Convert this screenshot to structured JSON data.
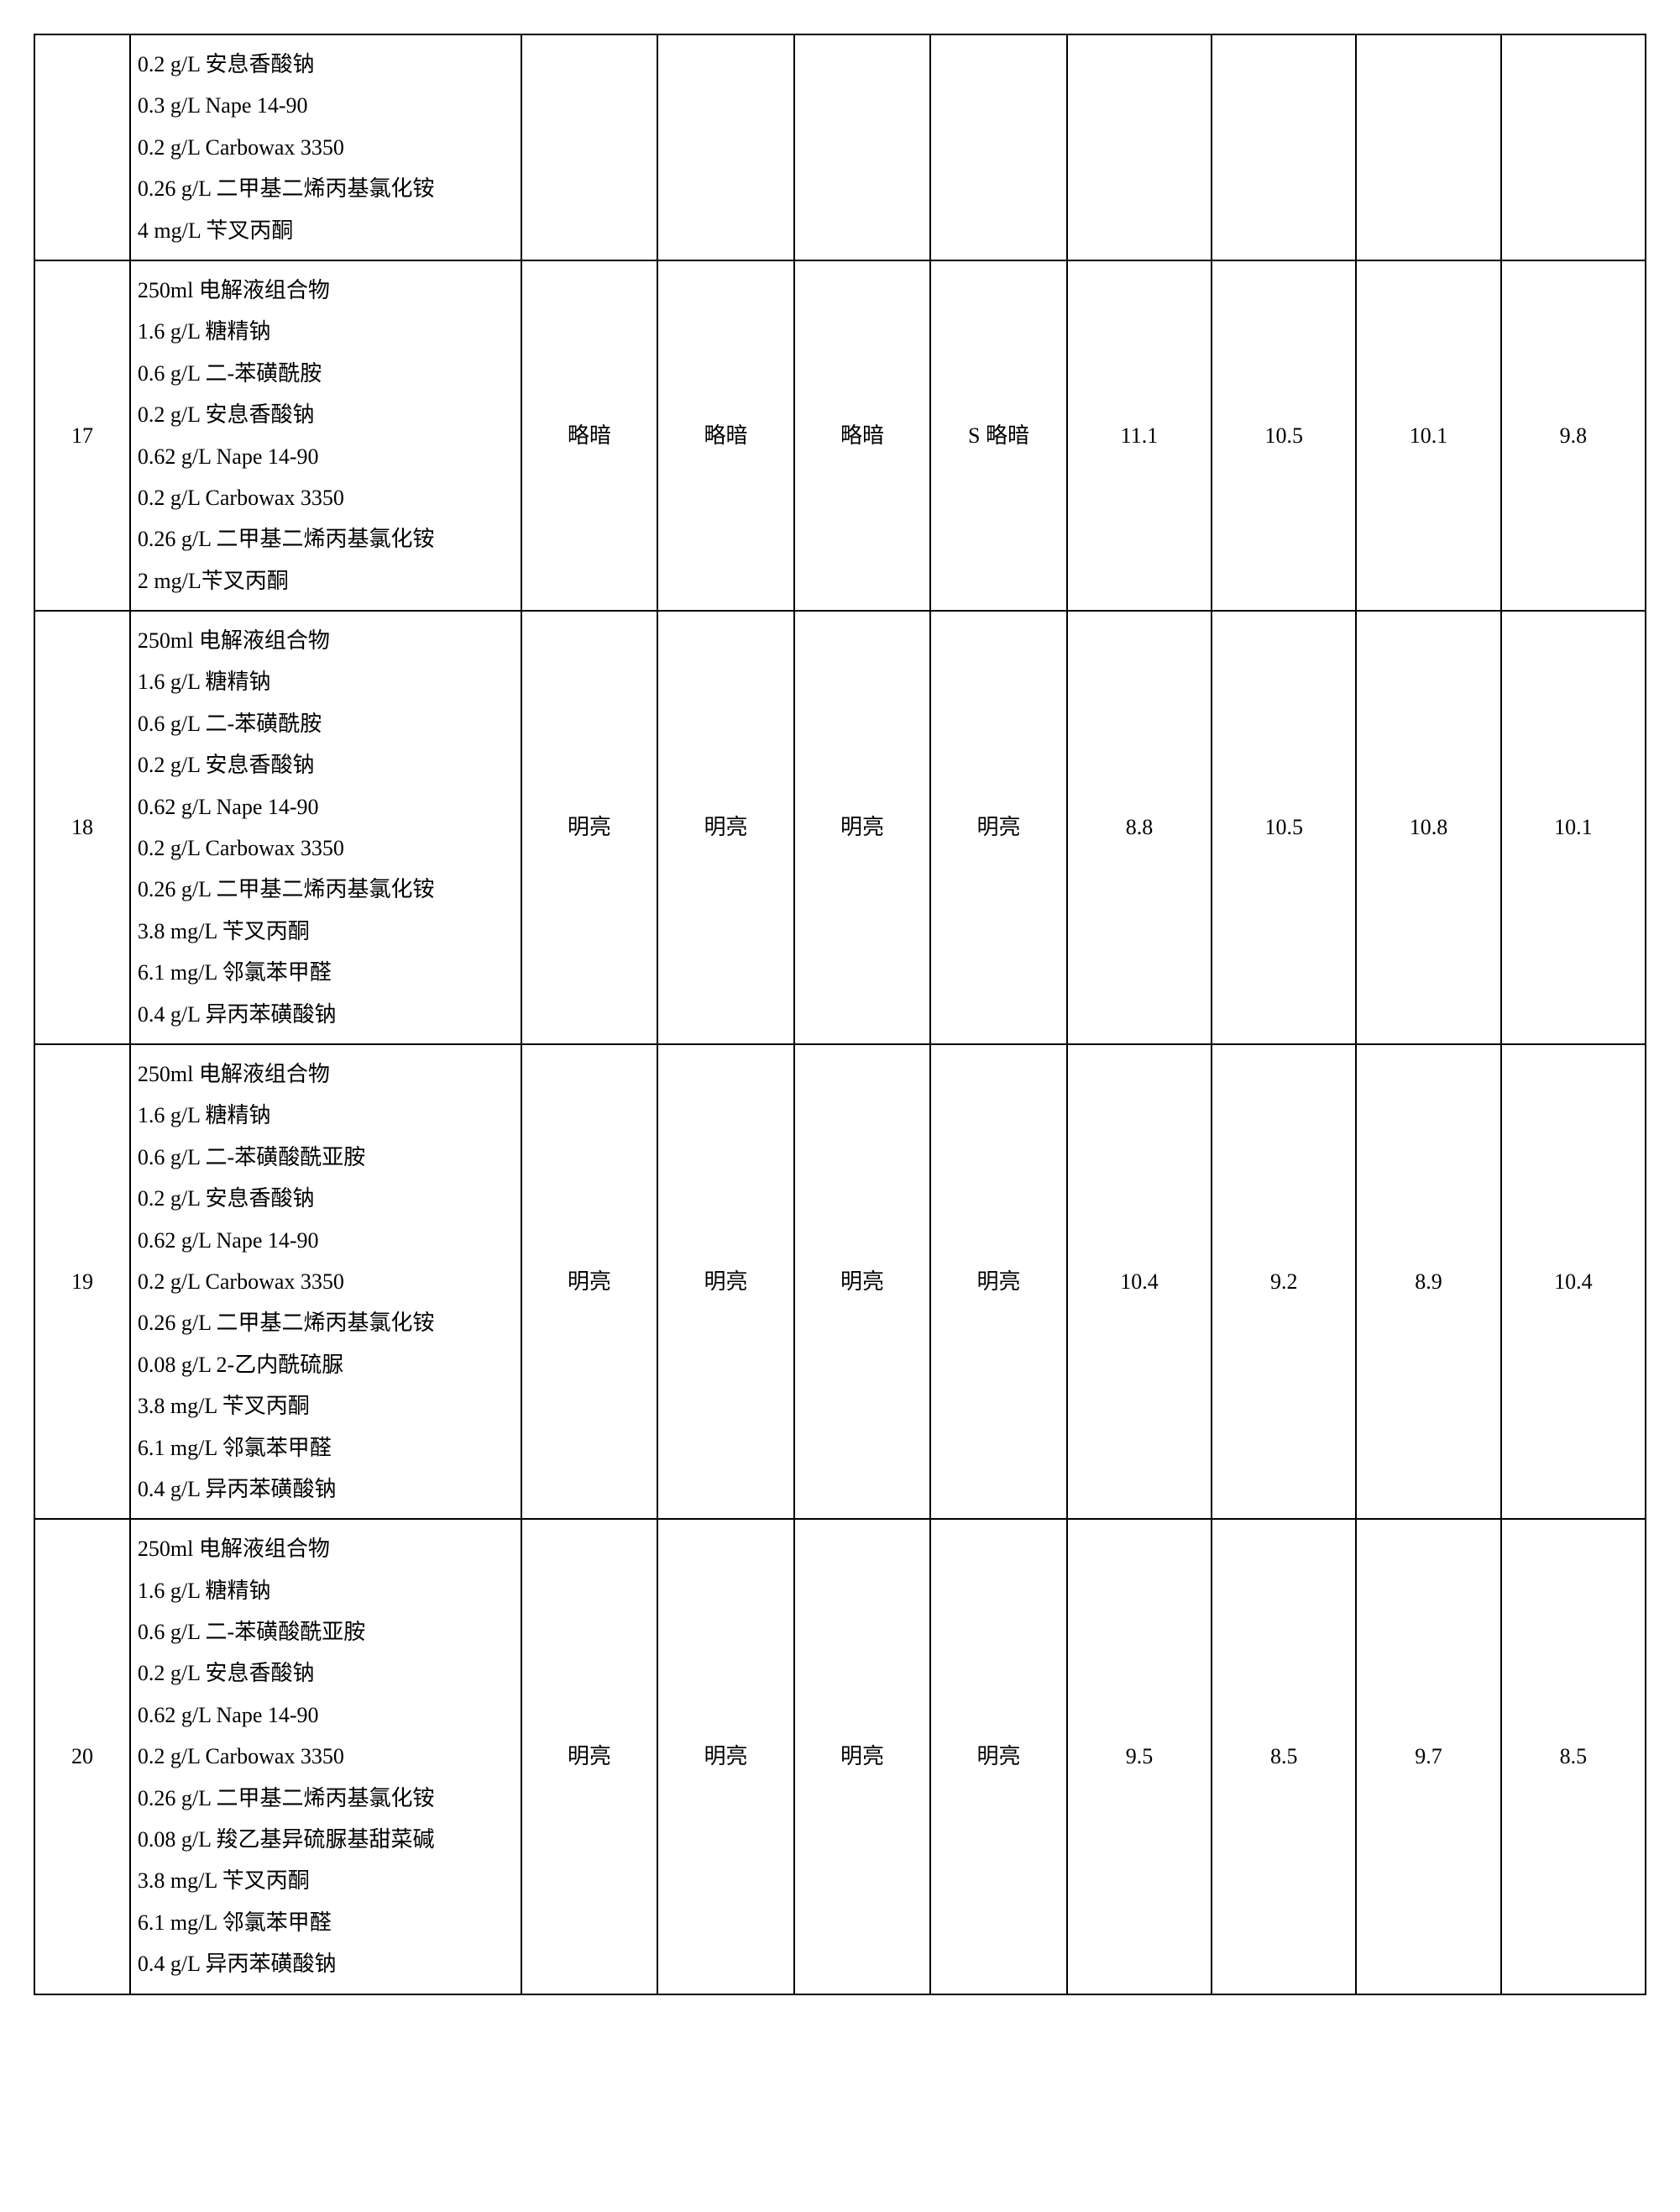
{
  "table": {
    "border_color": "#000000",
    "background_color": "#ffffff",
    "font_size_pt": 20,
    "rows": [
      {
        "idx": "",
        "comp": [
          "0.2 g/L 安息香酸钠",
          "0.3 g/L Nape 14-90",
          "0.2 g/L Carbowax 3350",
          "0.26 g/L 二甲基二烯丙基氯化铵",
          "4 mg/L 苄叉丙酮"
        ],
        "c3": "",
        "c4": "",
        "c5": "",
        "c6": "",
        "c7": "",
        "c8": "",
        "c9": "",
        "c10": ""
      },
      {
        "idx": "17",
        "comp": [
          "250ml 电解液组合物",
          "1.6 g/L 糖精钠",
          "0.6 g/L 二-苯磺酰胺",
          "0.2 g/L 安息香酸钠",
          "0.62 g/L Nape 14-90",
          "0.2 g/L Carbowax 3350",
          "0.26 g/L 二甲基二烯丙基氯化铵",
          "2 mg/L苄叉丙酮"
        ],
        "c3": "略暗",
        "c4": "略暗",
        "c5": "略暗",
        "c6": "S 略暗",
        "c7": "11.1",
        "c8": "10.5",
        "c9": "10.1",
        "c10": "9.8"
      },
      {
        "idx": "18",
        "comp": [
          "250ml 电解液组合物",
          "1.6 g/L 糖精钠",
          "0.6 g/L 二-苯磺酰胺",
          "0.2 g/L 安息香酸钠",
          "0.62 g/L Nape 14-90",
          "0.2 g/L Carbowax 3350",
          "0.26 g/L 二甲基二烯丙基氯化铵",
          "3.8 mg/L 苄叉丙酮",
          "6.1 mg/L 邻氯苯甲醛",
          "0.4 g/L 异丙苯磺酸钠"
        ],
        "c3": "明亮",
        "c4": "明亮",
        "c5": "明亮",
        "c6": "明亮",
        "c7": "8.8",
        "c8": "10.5",
        "c9": "10.8",
        "c10": "10.1"
      },
      {
        "idx": "19",
        "comp": [
          "250ml 电解液组合物",
          "1.6 g/L 糖精钠",
          "0.6 g/L 二-苯磺酸酰亚胺",
          "0.2 g/L 安息香酸钠",
          "0.62 g/L Nape 14-90",
          "0.2 g/L Carbowax 3350",
          "0.26 g/L 二甲基二烯丙基氯化铵",
          "0.08 g/L 2-乙内酰硫脲",
          "3.8 mg/L 苄叉丙酮",
          "6.1 mg/L 邻氯苯甲醛",
          "0.4 g/L 异丙苯磺酸钠"
        ],
        "c3": "明亮",
        "c4": "明亮",
        "c5": "明亮",
        "c6": "明亮",
        "c7": "10.4",
        "c8": "9.2",
        "c9": "8.9",
        "c10": "10.4"
      },
      {
        "idx": "20",
        "comp": [
          "250ml 电解液组合物",
          "1.6 g/L 糖精钠",
          "0.6 g/L 二-苯磺酸酰亚胺",
          "0.2 g/L 安息香酸钠",
          "0.62 g/L Nape 14-90",
          "0.2 g/L Carbowax 3350",
          "0.26 g/L 二甲基二烯丙基氯化铵",
          "0.08 g/L 羧乙基异硫脲基甜菜碱",
          "3.8 mg/L 苄叉丙酮",
          "6.1 mg/L 邻氯苯甲醛",
          "0.4 g/L 异丙苯磺酸钠"
        ],
        "c3": "明亮",
        "c4": "明亮",
        "c5": "明亮",
        "c6": "明亮",
        "c7": "9.5",
        "c8": "8.5",
        "c9": "9.7",
        "c10": "8.5"
      }
    ]
  }
}
